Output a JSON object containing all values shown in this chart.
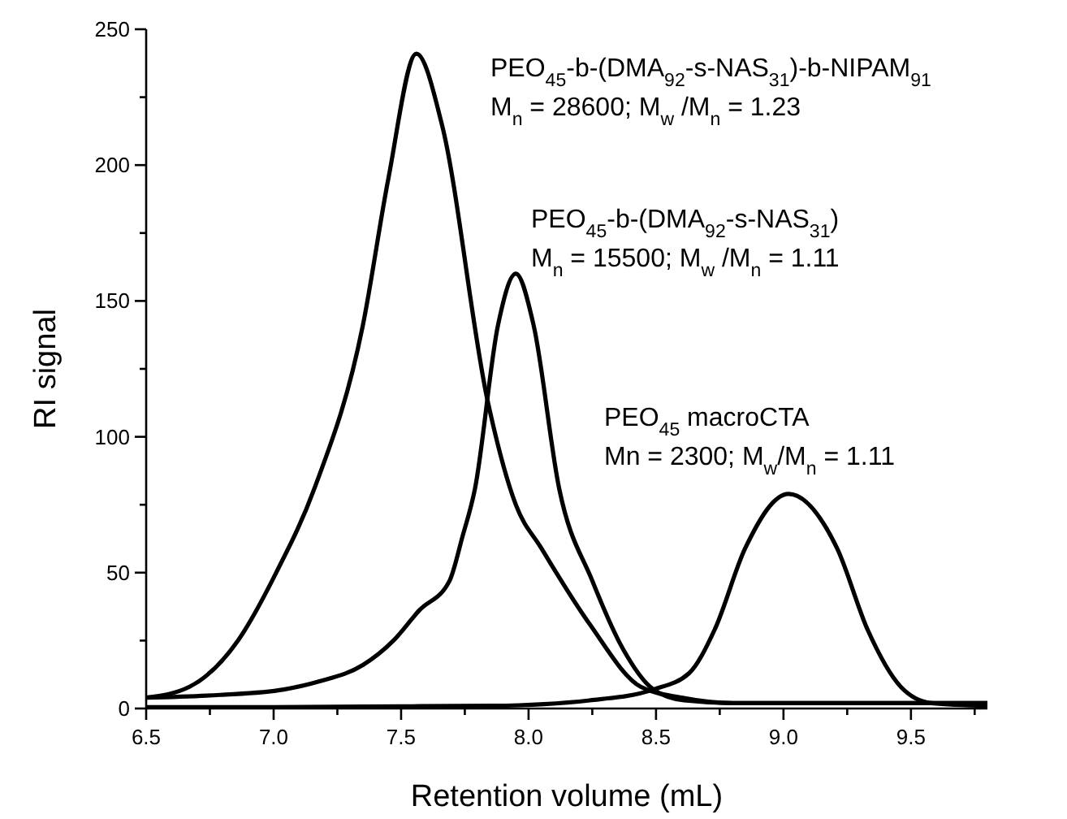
{
  "chart_data": {
    "type": "line",
    "xlabel": "Retention volume (mL)",
    "ylabel": "RI signal",
    "xlim": [
      6.5,
      9.8
    ],
    "xticks": [
      6.5,
      {
        "value": 6.75,
        "label": null
      },
      {
        "value": 7,
        "label": "7.0"
      },
      {
        "value": 7.25,
        "label": null
      },
      7.5,
      {
        "value": 7.75,
        "label": null
      },
      {
        "value": 8,
        "label": "8.0"
      },
      {
        "value": 8.25,
        "label": null
      },
      8.5,
      {
        "value": 8.75,
        "label": null
      },
      {
        "value": 9,
        "label": "9.0"
      },
      {
        "value": 9.25,
        "label": null
      },
      9.5,
      {
        "value": 9.75,
        "label": null
      }
    ],
    "ylim": [
      0,
      250
    ],
    "yticks": [
      0,
      {
        "value": 25,
        "label": null
      },
      50,
      {
        "value": 75,
        "label": null
      },
      100,
      {
        "value": 125,
        "label": null
      },
      150,
      {
        "value": 175,
        "label": null
      },
      200,
      {
        "value": 225,
        "label": null
      },
      250
    ],
    "grid": false,
    "marker": "none",
    "line_style": "solid",
    "series": [
      {
        "name": "PEO$_{45}$-b-(DMA$_{92}$-s-NAS$_{31}$)-b-NIPAM$_{91}$",
        "color": "#000000",
        "x": [
          6.5,
          6.67,
          6.86,
          7.01,
          7.16,
          7.35,
          7.45,
          7.56,
          7.66,
          7.84,
          7.95,
          8.05,
          8.24,
          8.44,
          8.6,
          8.8,
          9.2,
          9.6,
          9.8
        ],
        "values": [
          4,
          8,
          25,
          50,
          81,
          141,
          195,
          241,
          215,
          113,
          75,
          59,
          31,
          8,
          4,
          2,
          2,
          2,
          2
        ]
      },
      {
        "name": "PEO$_{45}$-b-(DMA$_{92}$-s-NAS$_{31}$)",
        "color": "#000000",
        "x": [
          6.5,
          6.79,
          7.04,
          7.18,
          7.35,
          7.47,
          7.57,
          7.69,
          7.74,
          7.79,
          7.88,
          7.95,
          8.02,
          8.12,
          8.25,
          8.37,
          8.49,
          8.61,
          8.8,
          9.2,
          9.6,
          9.8
        ],
        "values": [
          4,
          5,
          7,
          10,
          16,
          25,
          36,
          47,
          63,
          81,
          141,
          160,
          141,
          81,
          47,
          22,
          7,
          3,
          2,
          2,
          2,
          2
        ]
      },
      {
        "name": "PEO$_{45}$ macroCTA",
        "color": "#000000",
        "x": [
          6.5,
          7.0,
          7.5,
          7.86,
          8.24,
          8.49,
          8.63,
          8.73,
          8.85,
          9.02,
          9.21,
          9.33,
          9.46,
          9.58,
          9.8
        ],
        "values": [
          0.5,
          0.5,
          0.8,
          1,
          3,
          7,
          13,
          29,
          59,
          79,
          59,
          29,
          8,
          2,
          1
        ]
      }
    ],
    "annotations": [
      "M$_{n}$ = 28600; M$_{w}$ /M$_{n}$ = 1.23",
      "M$_{n}$ = 15500; M$_{w}$ /M$_{n}$ = 1.11",
      "Mn = 2300; M$_{w}$/M$_{n}$ = 1.11"
    ]
  }
}
